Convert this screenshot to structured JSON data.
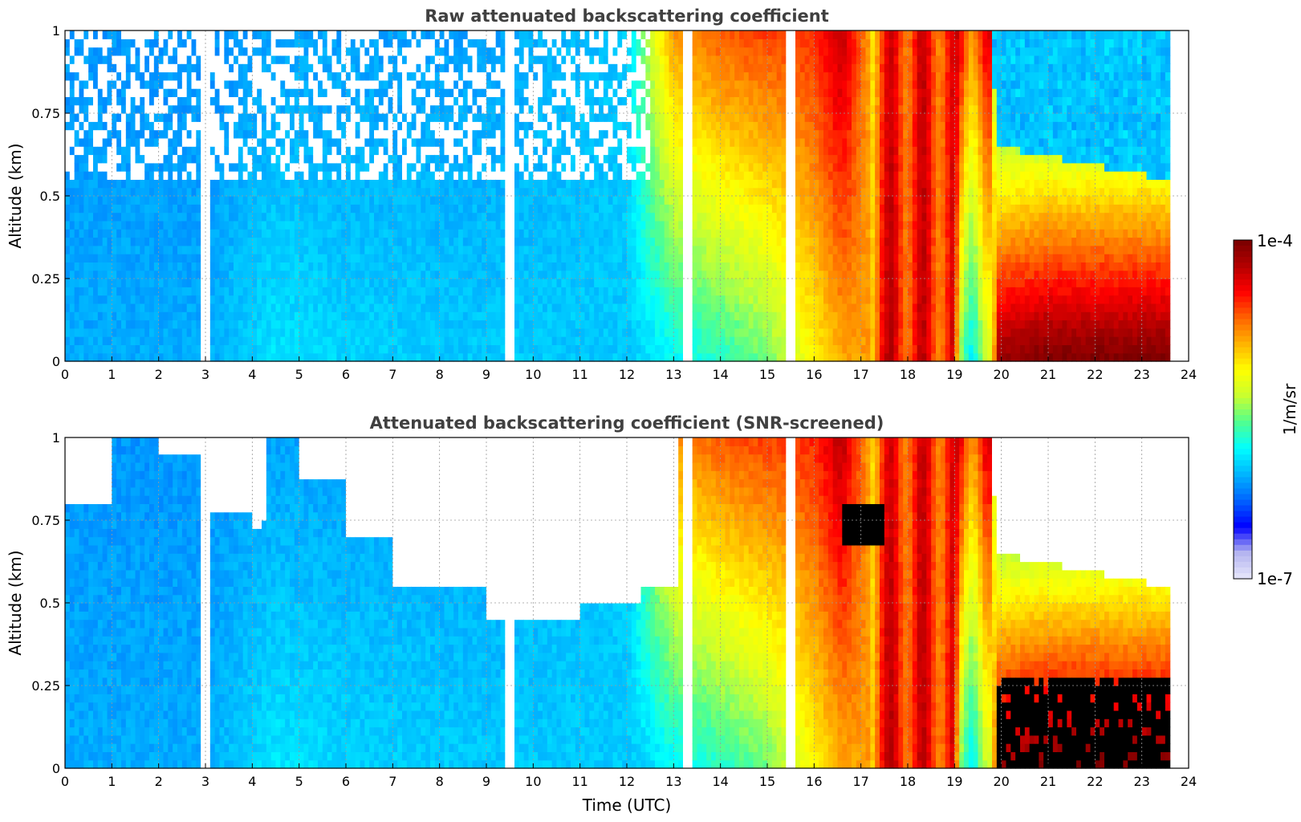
{
  "figure": {
    "colorbar": {
      "max_label": "1e-4",
      "min_label": "1e-7",
      "unit_label": "1/m/sr",
      "colormap": [
        "#e6e6fa",
        "#b4b4f0",
        "#0000ff",
        "#0064ff",
        "#00b4ff",
        "#00ffff",
        "#50ff90",
        "#c8ff30",
        "#ffff00",
        "#ffb400",
        "#ff6400",
        "#ff0000",
        "#b40000",
        "#780000"
      ]
    }
  },
  "chart_data": [
    {
      "type": "heatmap",
      "title": "Raw attenuated backscattering coefficient",
      "xlabel": "",
      "ylabel": "Altitude (km)",
      "xlim": [
        0,
        24
      ],
      "ylim": [
        0,
        1
      ],
      "xticks": [
        "0",
        "1",
        "2",
        "3",
        "4",
        "5",
        "6",
        "7",
        "8",
        "9",
        "10",
        "11",
        "12",
        "13",
        "14",
        "15",
        "16",
        "17",
        "18",
        "19",
        "20",
        "21",
        "22",
        "23",
        "24"
      ],
      "yticks": [
        "0",
        "0.25",
        "0.5",
        "0.75",
        "1"
      ],
      "grid": true,
      "screened": false,
      "value_scale": "log10 backscatter: 0 = 1e-7, 1 = 1e-4",
      "time_profile": {
        "time": [
          0,
          3,
          4.5,
          6,
          9,
          12,
          12.5,
          13,
          14,
          15,
          15.5,
          16,
          16.6,
          17.2,
          17.4,
          18,
          19,
          19.1,
          19.8,
          19.9,
          21,
          23.6
        ],
        "level_near_ground": [
          0.3,
          0.3,
          0.36,
          0.34,
          0.33,
          0.33,
          0.35,
          0.38,
          0.42,
          0.48,
          0.55,
          0.62,
          0.7,
          0.72,
          0.85,
          0.84,
          0.82,
          0.45,
          0.48,
          0.96,
          1.0,
          1.0
        ],
        "level_at_1km": [
          0.28,
          0.28,
          0.29,
          0.29,
          0.29,
          0.33,
          0.55,
          0.72,
          0.78,
          0.8,
          0.8,
          0.82,
          0.92,
          0.7,
          0.8,
          0.83,
          0.82,
          0.82,
          0.8,
          0.3,
          0.3,
          0.3
        ],
        "layer_top_km": [
          1,
          1,
          1,
          1,
          1,
          1,
          1,
          1,
          1,
          1,
          1,
          1,
          1,
          1,
          1,
          1,
          1,
          1,
          1,
          0.65,
          0.62,
          0.55
        ]
      },
      "annotations": [
        "vertical data gaps near 3.0, 9.5, 13.3, 15.5 UTC",
        "no data after 23.6 UTC"
      ]
    },
    {
      "type": "heatmap",
      "title": "Attenuated backscattering coefficient (SNR-screened)",
      "xlabel": "Time (UTC)",
      "ylabel": "Altitude (km)",
      "xlim": [
        0,
        24
      ],
      "ylim": [
        0,
        1
      ],
      "xticks": [
        "0",
        "1",
        "2",
        "3",
        "4",
        "5",
        "6",
        "7",
        "8",
        "9",
        "10",
        "11",
        "12",
        "13",
        "14",
        "15",
        "16",
        "17",
        "18",
        "19",
        "20",
        "21",
        "22",
        "23",
        "24"
      ],
      "yticks": [
        "0",
        "0.25",
        "0.5",
        "0.75",
        "1"
      ],
      "grid": true,
      "screened": true,
      "screen_mask": {
        "time": [
          0,
          1,
          2,
          3,
          4,
          4.2,
          4.3,
          5,
          6,
          7,
          9,
          11,
          12.3,
          12.9,
          13.1,
          20
        ],
        "screened_above_km": [
          0.8,
          1.0,
          0.95,
          0.78,
          0.72,
          0.75,
          1.0,
          0.88,
          0.7,
          0.55,
          0.45,
          0.5,
          0.55,
          0.55,
          1.0,
          1.0
        ]
      },
      "black_regions": [
        "16.6-17.5 UTC at 0.7-0.8 km",
        "19.9-23.6 UTC below 0.3 km"
      ],
      "annotations": [
        "vertical data gaps near 3.0, 9.5, 13.3, 15.5 UTC",
        "no data after 23.6 UTC"
      ]
    }
  ]
}
